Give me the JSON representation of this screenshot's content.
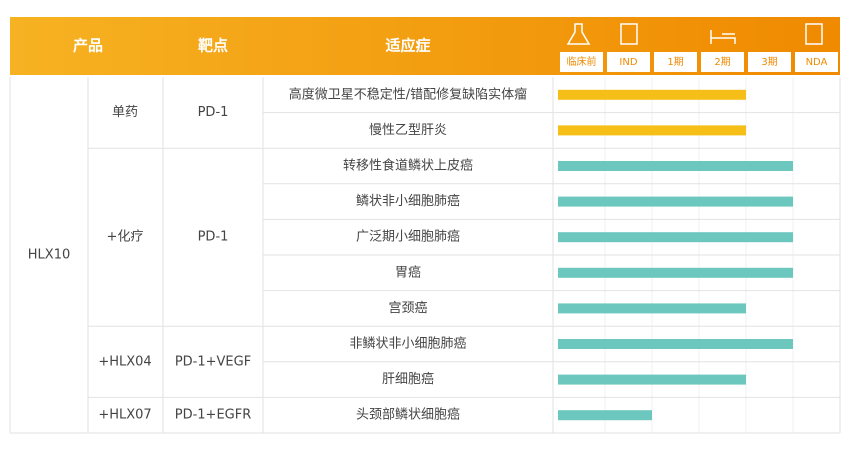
{
  "header": {
    "product": "产品",
    "target": "靶点",
    "indication": "适应症",
    "phases": [
      "临床前",
      "IND",
      "1期",
      "2期",
      "3期",
      "NDA"
    ]
  },
  "product": "HLX10",
  "groups": [
    {
      "regimen": "单药",
      "target": "PD-1",
      "bar_color": "#f6bf17",
      "indications": [
        {
          "name": "高度微卫星不稳定性/错配修复缺陷实体瘤",
          "stages": 4
        },
        {
          "name": "慢性乙型肝炎",
          "stages": 4
        }
      ]
    },
    {
      "regimen": "+化疗",
      "target": "PD-1",
      "bar_color": "#6cc7bf",
      "indications": [
        {
          "name": "转移性食道鳞状上皮癌",
          "stages": 5
        },
        {
          "name": "鳞状非小细胞肺癌",
          "stages": 5
        },
        {
          "name": "广泛期小细胞肺癌",
          "stages": 5
        },
        {
          "name": "胃癌",
          "stages": 5
        },
        {
          "name": "宫颈癌",
          "stages": 4
        }
      ]
    },
    {
      "regimen": "+HLX04",
      "target": "PD-1+VEGF",
      "bar_color": "#6cc7bf",
      "indications": [
        {
          "name": "非鳞状非小细胞肺癌",
          "stages": 5
        },
        {
          "name": "肝细胞癌",
          "stages": 4
        }
      ]
    },
    {
      "regimen": "+HLX07",
      "target": "PD-1+EGFR",
      "bar_color": "#6cc7bf",
      "indications": [
        {
          "name": "头颈部鳞状细胞癌",
          "stages": 2
        }
      ]
    }
  ]
}
